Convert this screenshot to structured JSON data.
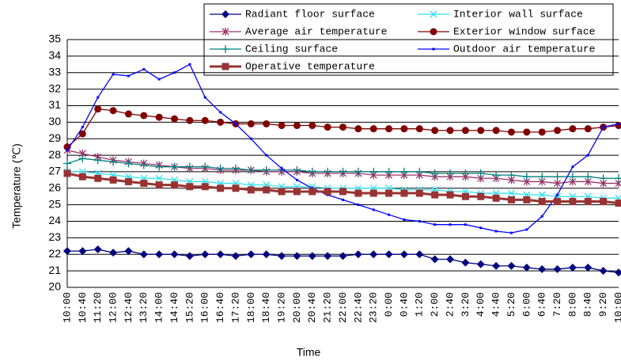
{
  "chart_data": {
    "type": "line",
    "categories": [
      "10:00",
      "10:40",
      "11:20",
      "12:00",
      "12:40",
      "13:20",
      "14:00",
      "14:40",
      "15:20",
      "16:00",
      "16:40",
      "17:20",
      "18:00",
      "18:40",
      "19:20",
      "20:00",
      "20:40",
      "21:20",
      "22:00",
      "22:40",
      "23:20",
      "0:00",
      "0:40",
      "1:20",
      "2:00",
      "2:40",
      "3:20",
      "4:00",
      "4:40",
      "5:20",
      "6:00",
      "6:40",
      "7:20",
      "8:00",
      "8:40",
      "9:20",
      "10:00"
    ],
    "x_label": "Time",
    "y_label": "Temperature (℃)",
    "ylim": [
      20,
      35
    ],
    "yticks": [
      20,
      21,
      22,
      23,
      24,
      25,
      26,
      27,
      28,
      29,
      30,
      31,
      32,
      33,
      34,
      35
    ],
    "grid": true,
    "series": [
      {
        "name": "Radiant floor surface",
        "color": "#000080",
        "marker": "diamond",
        "values": [
          22.2,
          22.2,
          22.3,
          22.1,
          22.2,
          22.0,
          22.0,
          22.0,
          21.9,
          22.0,
          22.0,
          21.9,
          22.0,
          22.0,
          21.9,
          21.9,
          21.9,
          21.9,
          21.9,
          22.0,
          22.0,
          22.0,
          22.0,
          22.0,
          21.7,
          21.7,
          21.5,
          21.4,
          21.3,
          21.3,
          21.2,
          21.1,
          21.1,
          21.2,
          21.2,
          21.0,
          20.9
        ]
      },
      {
        "name": "Interior wall surface",
        "color": "#33e0f0",
        "marker": "x",
        "values": [
          27.0,
          27.0,
          26.9,
          26.8,
          26.7,
          26.6,
          26.6,
          26.5,
          26.4,
          26.4,
          26.3,
          26.3,
          26.2,
          26.2,
          26.1,
          26.1,
          26.1,
          26.0,
          26.0,
          26.0,
          26.0,
          26.0,
          25.9,
          25.9,
          25.9,
          25.8,
          25.8,
          25.7,
          25.7,
          25.7,
          25.6,
          25.6,
          25.5,
          25.5,
          25.5,
          25.4,
          25.4
        ]
      },
      {
        "name": "Average air temperature",
        "color": "#993366",
        "marker": "star",
        "values": [
          28.3,
          28.1,
          27.9,
          27.7,
          27.6,
          27.5,
          27.4,
          27.3,
          27.2,
          27.2,
          27.1,
          27.1,
          27.1,
          27.0,
          27.0,
          27.0,
          26.9,
          26.9,
          26.9,
          26.9,
          26.8,
          26.8,
          26.8,
          26.8,
          26.7,
          26.7,
          26.7,
          26.6,
          26.6,
          26.5,
          26.4,
          26.4,
          26.3,
          26.4,
          26.4,
          26.3,
          26.3
        ]
      },
      {
        "name": "Exterior window surface",
        "color": "#800000",
        "marker": "circle",
        "values": [
          28.5,
          29.3,
          30.8,
          30.7,
          30.5,
          30.4,
          30.3,
          30.2,
          30.1,
          30.1,
          30.0,
          29.9,
          29.9,
          29.9,
          29.8,
          29.8,
          29.8,
          29.7,
          29.7,
          29.6,
          29.6,
          29.6,
          29.6,
          29.6,
          29.5,
          29.5,
          29.5,
          29.5,
          29.5,
          29.4,
          29.4,
          29.4,
          29.5,
          29.6,
          29.6,
          29.7,
          29.8
        ]
      },
      {
        "name": "Ceiling surface",
        "color": "#008080",
        "marker": "plus",
        "values": [
          27.5,
          27.8,
          27.7,
          27.6,
          27.5,
          27.4,
          27.3,
          27.3,
          27.3,
          27.3,
          27.2,
          27.2,
          27.1,
          27.1,
          27.1,
          27.1,
          27.0,
          27.0,
          27.0,
          27.0,
          27.0,
          27.0,
          27.0,
          27.0,
          26.9,
          26.9,
          26.9,
          26.9,
          26.8,
          26.8,
          26.7,
          26.7,
          26.7,
          26.7,
          26.7,
          26.6,
          26.6
        ]
      },
      {
        "name": "Outdoor air temperature",
        "color": "#0000ff",
        "marker": "small-square",
        "values": [
          28.3,
          29.7,
          31.5,
          32.9,
          32.8,
          33.2,
          32.6,
          33.0,
          33.5,
          31.5,
          30.6,
          29.9,
          29.0,
          28.0,
          27.2,
          26.5,
          26.0,
          25.6,
          25.3,
          25.0,
          24.7,
          24.4,
          24.1,
          24.0,
          23.8,
          23.8,
          23.8,
          23.6,
          23.4,
          23.3,
          23.5,
          24.3,
          25.6,
          27.3,
          28.0,
          29.7,
          29.9
        ]
      },
      {
        "name": "Operative temperature",
        "color": "#993333",
        "marker": "square",
        "values": [
          26.9,
          26.7,
          26.6,
          26.5,
          26.4,
          26.3,
          26.2,
          26.2,
          26.1,
          26.1,
          26.0,
          26.0,
          25.9,
          25.9,
          25.8,
          25.8,
          25.8,
          25.8,
          25.8,
          25.7,
          25.7,
          25.7,
          25.7,
          25.7,
          25.6,
          25.6,
          25.5,
          25.5,
          25.4,
          25.3,
          25.3,
          25.2,
          25.2,
          25.2,
          25.2,
          25.2,
          25.1
        ]
      }
    ]
  }
}
